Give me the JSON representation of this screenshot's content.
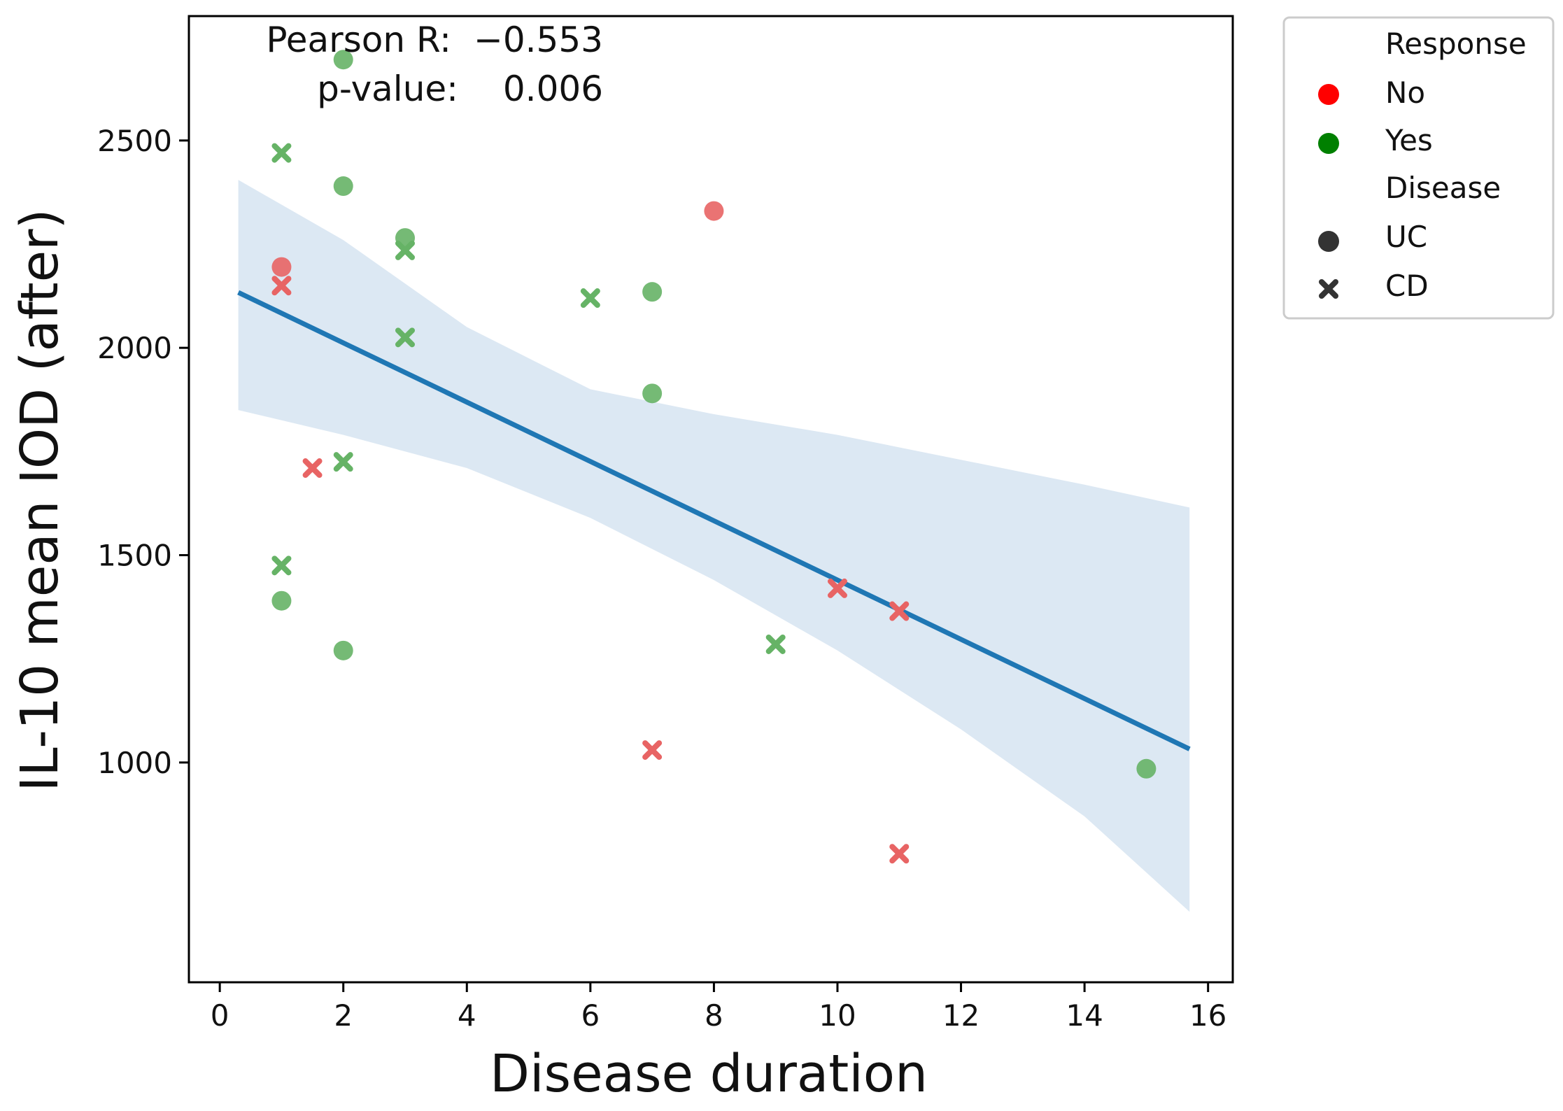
{
  "chart_data": {
    "type": "scatter",
    "xlabel": "Disease duration",
    "ylabel": "IL-10 mean IOD (after)",
    "xlim": [
      -0.5,
      16.4
    ],
    "ylim": [
      470,
      2800
    ],
    "x_ticks": [
      0,
      2,
      4,
      6,
      8,
      10,
      12,
      14,
      16
    ],
    "y_ticks": [
      1000,
      1500,
      2000,
      2500
    ],
    "grid": false,
    "annotation": {
      "pearson_label": "Pearson R:",
      "pearson_value": "−0.553",
      "p_label": "p-value:",
      "p_value": "0.006"
    },
    "legend": {
      "placement": "outside-top-right",
      "response_title": "Response",
      "disease_title": "Disease",
      "entries": [
        {
          "label": "No",
          "color": "#ff0000",
          "marker": "circle"
        },
        {
          "label": "Yes",
          "color": "#008000",
          "marker": "circle"
        },
        {
          "label": "UC",
          "color": "#333333",
          "marker": "circle"
        },
        {
          "label": "CD",
          "color": "#333333",
          "marker": "x"
        }
      ]
    },
    "colors": {
      "No": "#e86464",
      "Yes": "#66b366",
      "fit_line": "#1f77b4",
      "ci_band": "#dce8f3"
    },
    "regression": {
      "slope": -71.5,
      "intercept": 2155,
      "x_range": [
        0.3,
        15.7
      ]
    },
    "confidence_band": [
      {
        "x": 0.3,
        "lower": 1850,
        "upper": 2405
      },
      {
        "x": 2.0,
        "lower": 1790,
        "upper": 2260
      },
      {
        "x": 4.0,
        "lower": 1710,
        "upper": 2050
      },
      {
        "x": 6.0,
        "lower": 1590,
        "upper": 1900
      },
      {
        "x": 8.0,
        "lower": 1440,
        "upper": 1840
      },
      {
        "x": 10.0,
        "lower": 1270,
        "upper": 1790
      },
      {
        "x": 12.0,
        "lower": 1080,
        "upper": 1730
      },
      {
        "x": 14.0,
        "lower": 870,
        "upper": 1670
      },
      {
        "x": 15.7,
        "lower": 640,
        "upper": 1615
      }
    ],
    "series": [
      {
        "response": "Yes",
        "disease": "UC",
        "points": [
          [
            2,
            2695
          ],
          [
            2,
            2390
          ],
          [
            3,
            2265
          ],
          [
            7,
            2135
          ],
          [
            7,
            1890
          ],
          [
            1,
            1390
          ],
          [
            2,
            1270
          ],
          [
            15,
            985
          ]
        ]
      },
      {
        "response": "Yes",
        "disease": "CD",
        "points": [
          [
            1,
            2470
          ],
          [
            3,
            2235
          ],
          [
            6,
            2120
          ],
          [
            3,
            2025
          ],
          [
            2,
            1725
          ],
          [
            1,
            1475
          ],
          [
            9,
            1285
          ]
        ]
      },
      {
        "response": "No",
        "disease": "UC",
        "points": [
          [
            1,
            2195
          ],
          [
            8,
            2330
          ]
        ]
      },
      {
        "response": "No",
        "disease": "CD",
        "points": [
          [
            1,
            2150
          ],
          [
            1.5,
            1710
          ],
          [
            10,
            1420
          ],
          [
            11,
            1365
          ],
          [
            7,
            1030
          ],
          [
            11,
            780
          ]
        ]
      }
    ]
  }
}
